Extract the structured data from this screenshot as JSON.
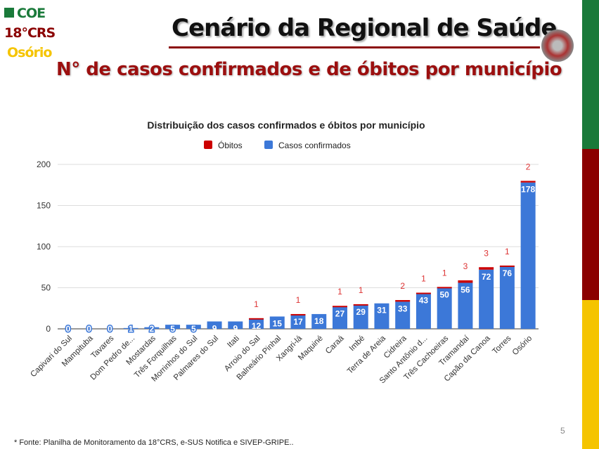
{
  "header": {
    "logo_line1": "COE",
    "logo_line2": "18°CRS",
    "logo_line3": "Osório",
    "title": "Cenário da Regional de Saúde",
    "subtitle": "N° de casos confirmados e de óbitos por município"
  },
  "footer": {
    "source": "* Fonte: Planilha de Monitoramento da 18°CRS, e-SUS Notifica e SIVEP-GRIPE..",
    "page": "5"
  },
  "colors": {
    "cases": "#3c78d8",
    "deaths": "#cc0000",
    "green": "#1a7a3a",
    "red": "#8b0000",
    "yellow": "#f5c400"
  },
  "chart_data": {
    "type": "bar",
    "stacked": true,
    "title": "Distribuição dos casos confirmados e óbitos por município",
    "legend": [
      "Óbitos",
      "Casos confirmados"
    ],
    "legend_position": "top",
    "ylim": [
      0,
      200
    ],
    "yticks": [
      0,
      50,
      100,
      150,
      200
    ],
    "grid": true,
    "categories": [
      "Capivari do Sul",
      "Mampituba",
      "Tavares",
      "Dom Pedro de...",
      "Mostardas",
      "Três Forquilhas",
      "Morrinhos do Sul",
      "Palmares do Sul",
      "Itati",
      "Arroio do Sal",
      "Balneário Pinhal",
      "Xangri-lá",
      "Maquiné",
      "Caraá",
      "Imbé",
      "Terra de Areia",
      "Cidreira",
      "Santo Antônio d...",
      "Três Cachoeiras",
      "Tramandaí",
      "Capão da Canoa",
      "Torres",
      "Osório"
    ],
    "series": [
      {
        "name": "Casos confirmados",
        "values": [
          0,
          0,
          0,
          1,
          2,
          5,
          5,
          9,
          9,
          12,
          15,
          17,
          18,
          27,
          29,
          31,
          33,
          43,
          50,
          56,
          72,
          76,
          178
        ]
      },
      {
        "name": "Óbitos",
        "values": [
          0,
          0,
          0,
          0,
          0,
          0,
          0,
          0,
          0,
          1,
          0,
          1,
          0,
          1,
          1,
          0,
          2,
          1,
          1,
          3,
          3,
          1,
          2
        ]
      }
    ]
  }
}
